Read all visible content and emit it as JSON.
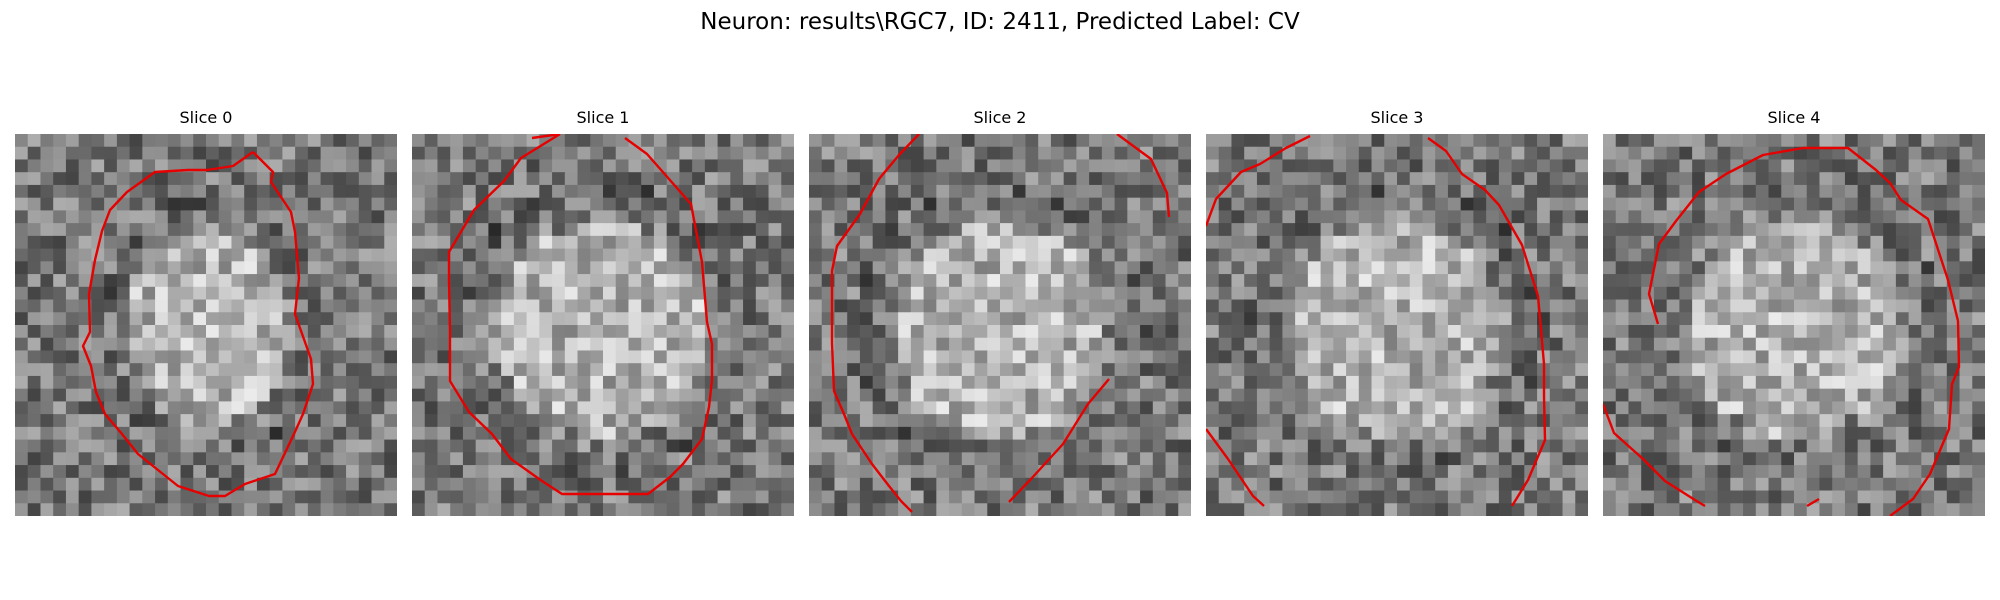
{
  "figure": {
    "title": "Neuron: results\\RGC7, ID: 2411, Predicted Label: CV"
  },
  "colormap": "gray",
  "contour_color": "#e60000",
  "grid_size": 30,
  "panels": [
    {
      "title": "Slice 0",
      "body_shape": "oval"
    },
    {
      "title": "Slice 1",
      "body_shape": "round"
    },
    {
      "title": "Slice 2",
      "body_shape": "round"
    },
    {
      "title": "Slice 3",
      "body_shape": "round"
    },
    {
      "title": "Slice 4",
      "body_shape": "round"
    }
  ]
}
